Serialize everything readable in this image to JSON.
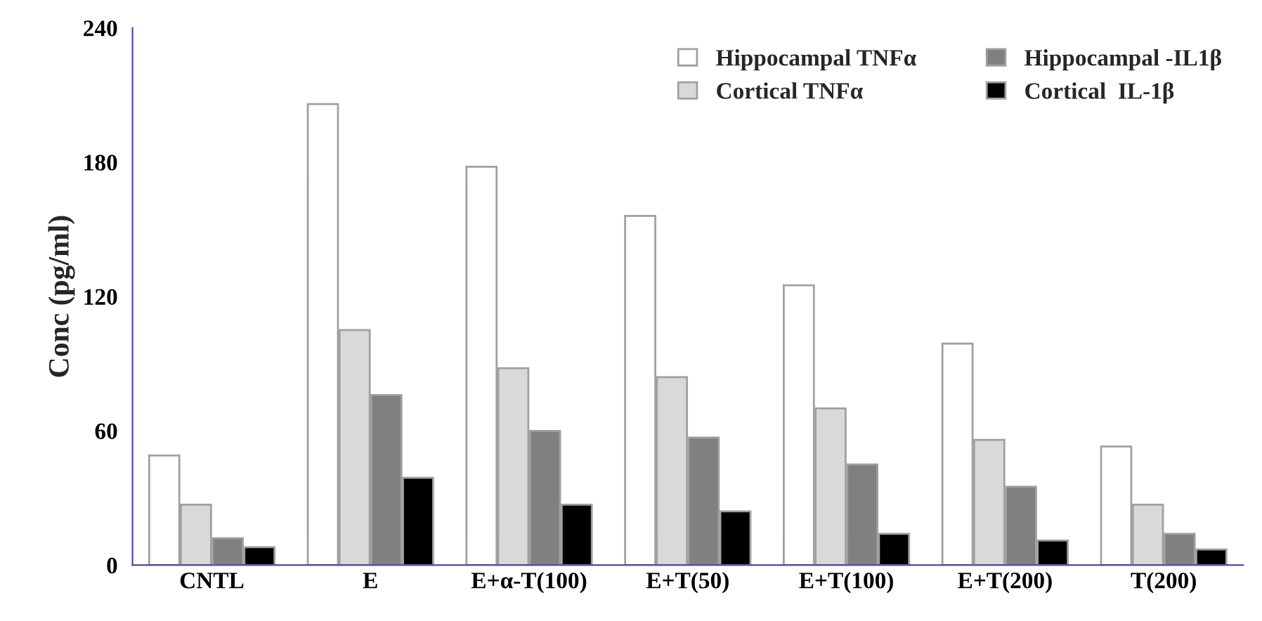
{
  "chart_data": {
    "type": "bar",
    "ylabel": "Conc (pg/ml)",
    "categories": [
      "CNTL",
      "E",
      "E+α-T(100)",
      "E+T(50)",
      "E+T(100)",
      "E+T(200)",
      "T(200)"
    ],
    "series": [
      {
        "name": "Hippocampal TNFα",
        "color": "#ffffff",
        "values": [
          49,
          206,
          178,
          156,
          125,
          99,
          53
        ]
      },
      {
        "name": "Cortical TNFα",
        "color": "#d9d9d9",
        "values": [
          27,
          105,
          88,
          84,
          70,
          56,
          27
        ]
      },
      {
        "name": "Hippocampal -IL1β",
        "color": "#808080",
        "values": [
          12,
          76,
          60,
          57,
          45,
          35,
          14
        ]
      },
      {
        "name": "Cortical  IL-1β",
        "color": "#000000",
        "values": [
          8,
          39,
          27,
          24,
          14,
          11,
          7
        ]
      }
    ],
    "ylim": [
      0,
      240
    ],
    "yticks": [
      0,
      60,
      120,
      180,
      240
    ],
    "grid": false,
    "legend": "top right"
  }
}
